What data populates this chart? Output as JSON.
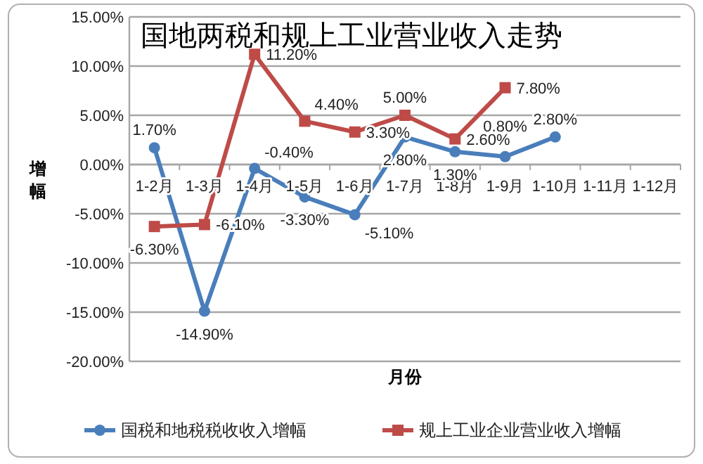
{
  "chart_data": {
    "type": "line",
    "title": "国地两税和规上工业营业收入走势",
    "xlabel": "月份",
    "ylabel": "增幅",
    "categories": [
      "1-2月",
      "1-3月",
      "1-4月",
      "1-5月",
      "1-6月",
      "1-7月",
      "1-8月",
      "1-9月",
      "1-10月",
      "1-11月",
      "1-12月"
    ],
    "ylim": [
      -20,
      15
    ],
    "yticks": [
      {
        "value": -20,
        "label": "-20.00%"
      },
      {
        "value": -15,
        "label": "-15.00%"
      },
      {
        "value": -10,
        "label": "-10.00%"
      },
      {
        "value": -5,
        "label": "-5.00%"
      },
      {
        "value": 0,
        "label": "0.00%"
      },
      {
        "value": 5,
        "label": "5.00%"
      },
      {
        "value": 10,
        "label": "10.00%"
      },
      {
        "value": 15,
        "label": "15.00%"
      }
    ],
    "grid": "y",
    "legend": "bottom",
    "line_style": "solid",
    "series": [
      {
        "name": "国税和地税税收收入增幅",
        "color": "#4a7ebb",
        "marker": "circle",
        "values": [
          1.7,
          -14.9,
          -0.4,
          -3.3,
          -5.1,
          2.8,
          1.3,
          0.8,
          2.8,
          null,
          null
        ],
        "value_labels": [
          "1.70%",
          "-14.90%",
          "-0.40%",
          "-3.30%",
          "-5.10%",
          "2.80%",
          "1.30%",
          "0.80%",
          "2.80%",
          null,
          null
        ]
      },
      {
        "name": "规上工业企业营业收入增幅",
        "color": "#be4b48",
        "marker": "square",
        "values": [
          -6.3,
          -6.1,
          11.2,
          4.4,
          3.3,
          5.0,
          2.6,
          7.8,
          null,
          null,
          null
        ],
        "value_labels": [
          "-6.30%",
          "-6.10%",
          "11.20%",
          "4.40%",
          "3.30%",
          "5.00%",
          "2.60%",
          "7.80%",
          null,
          null,
          null
        ]
      }
    ]
  }
}
